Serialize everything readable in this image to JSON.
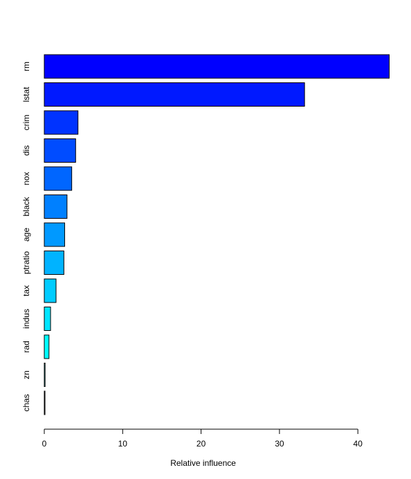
{
  "chart_data": {
    "type": "bar",
    "orientation": "horizontal",
    "title": "",
    "xlabel": "Relative influence",
    "ylabel": "",
    "categories": [
      "rm",
      "lstat",
      "crim",
      "dis",
      "nox",
      "black",
      "age",
      "ptratio",
      "tax",
      "indus",
      "rad",
      "zn",
      "chas"
    ],
    "values": [
      44.0,
      33.2,
      4.3,
      4.0,
      3.5,
      2.9,
      2.6,
      2.5,
      1.5,
      0.8,
      0.6,
      0.1,
      0.05
    ],
    "bar_colors": [
      "#0000FF",
      "#0019FF",
      "#0033FF",
      "#004CFF",
      "#0066FF",
      "#0080FF",
      "#0099FF",
      "#00B3FF",
      "#00CCFF",
      "#00E6FF",
      "#00FFFF",
      "#00FFFF",
      "#00FFFF"
    ],
    "xlim": [
      0,
      44
    ],
    "xticks": [
      0,
      10,
      20,
      30,
      40
    ],
    "grid": false,
    "legend": "none"
  }
}
